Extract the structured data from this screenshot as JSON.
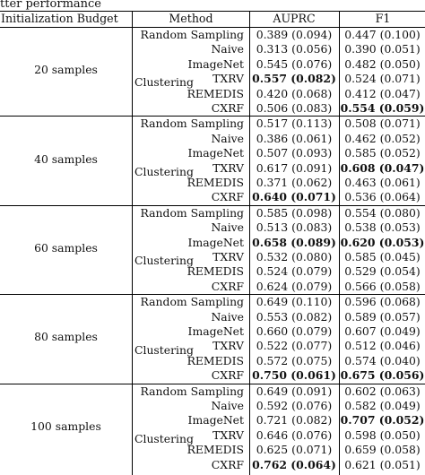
{
  "caption": "tter performance",
  "headers": {
    "budget": "Initialization Budget",
    "method": "Method",
    "auprc": "AUPRC",
    "f1": "F1"
  },
  "groups": [
    {
      "budget": "20 samples",
      "cluster_label": "Clustering",
      "rows": [
        {
          "method": "Random Sampling",
          "auprc": "0.389 (0.094)",
          "f1": "0.447 (0.100)",
          "auprc_bold": false,
          "f1_bold": false
        },
        {
          "method": "Naive",
          "auprc": "0.313 (0.056)",
          "f1": "0.390 (0.051)",
          "auprc_bold": false,
          "f1_bold": false
        },
        {
          "method": "ImageNet",
          "auprc": "0.545 (0.076)",
          "f1": "0.482 (0.050)",
          "auprc_bold": false,
          "f1_bold": false
        },
        {
          "method": "TXRV",
          "auprc": "0.557 (0.082)",
          "f1": "0.524 (0.071)",
          "auprc_bold": true,
          "f1_bold": false
        },
        {
          "method": "REMEDIS",
          "auprc": "0.420 (0.068)",
          "f1": "0.412 (0.047)",
          "auprc_bold": false,
          "f1_bold": false
        },
        {
          "method": "CXRF",
          "auprc": "0.506 (0.083)",
          "f1": "0.554 (0.059)",
          "auprc_bold": false,
          "f1_bold": true
        }
      ]
    },
    {
      "budget": "40 samples",
      "cluster_label": "Clustering",
      "rows": [
        {
          "method": "Random Sampling",
          "auprc": "0.517 (0.113)",
          "f1": "0.508 (0.071)",
          "auprc_bold": false,
          "f1_bold": false
        },
        {
          "method": "Naive",
          "auprc": "0.386 (0.061)",
          "f1": "0.462 (0.052)",
          "auprc_bold": false,
          "f1_bold": false
        },
        {
          "method": "ImageNet",
          "auprc": "0.507 (0.093)",
          "f1": "0.585 (0.052)",
          "auprc_bold": false,
          "f1_bold": false
        },
        {
          "method": "TXRV",
          "auprc": "0.617 (0.091)",
          "f1": "0.608 (0.047)",
          "auprc_bold": false,
          "f1_bold": true
        },
        {
          "method": "REMEDIS",
          "auprc": "0.371 (0.062)",
          "f1": "0.463 (0.061)",
          "auprc_bold": false,
          "f1_bold": false
        },
        {
          "method": "CXRF",
          "auprc": "0.640 (0.071)",
          "f1": "0.536 (0.064)",
          "auprc_bold": true,
          "f1_bold": false
        }
      ]
    },
    {
      "budget": "60 samples",
      "cluster_label": "Clustering",
      "rows": [
        {
          "method": "Random Sampling",
          "auprc": "0.585 (0.098)",
          "f1": "0.554 (0.080)",
          "auprc_bold": false,
          "f1_bold": false
        },
        {
          "method": "Naive",
          "auprc": "0.513 (0.083)",
          "f1": "0.538 (0.053)",
          "auprc_bold": false,
          "f1_bold": false
        },
        {
          "method": "ImageNet",
          "auprc": "0.658 (0.089)",
          "f1": "0.620 (0.053)",
          "auprc_bold": true,
          "f1_bold": true
        },
        {
          "method": "TXRV",
          "auprc": "0.532 (0.080)",
          "f1": "0.585 (0.045)",
          "auprc_bold": false,
          "f1_bold": false
        },
        {
          "method": "REMEDIS",
          "auprc": "0.524 (0.079)",
          "f1": "0.529 (0.054)",
          "auprc_bold": false,
          "f1_bold": false
        },
        {
          "method": "CXRF",
          "auprc": "0.624 (0.079)",
          "f1": "0.566 (0.058)",
          "auprc_bold": false,
          "f1_bold": false
        }
      ]
    },
    {
      "budget": "80 samples",
      "cluster_label": "Clustering",
      "rows": [
        {
          "method": "Random Sampling",
          "auprc": "0.649 (0.110)",
          "f1": "0.596 (0.068)",
          "auprc_bold": false,
          "f1_bold": false
        },
        {
          "method": "Naive",
          "auprc": "0.553 (0.082)",
          "f1": "0.589 (0.057)",
          "auprc_bold": false,
          "f1_bold": false
        },
        {
          "method": "ImageNet",
          "auprc": "0.660 (0.079)",
          "f1": "0.607 (0.049)",
          "auprc_bold": false,
          "f1_bold": false
        },
        {
          "method": "TXRV",
          "auprc": "0.522 (0.077)",
          "f1": "0.512 (0.046)",
          "auprc_bold": false,
          "f1_bold": false
        },
        {
          "method": "REMEDIS",
          "auprc": "0.572 (0.075)",
          "f1": "0.574 (0.040)",
          "auprc_bold": false,
          "f1_bold": false
        },
        {
          "method": "CXRF",
          "auprc": "0.750 (0.061)",
          "f1": "0.675 (0.056)",
          "auprc_bold": true,
          "f1_bold": true
        }
      ]
    },
    {
      "budget": "100 samples",
      "cluster_label": "Clustering",
      "rows": [
        {
          "method": "Random Sampling",
          "auprc": "0.649 (0.091)",
          "f1": "0.602 (0.063)",
          "auprc_bold": false,
          "f1_bold": false
        },
        {
          "method": "Naive",
          "auprc": "0.592 (0.076)",
          "f1": "0.582 (0.049)",
          "auprc_bold": false,
          "f1_bold": false
        },
        {
          "method": "ImageNet",
          "auprc": "0.721 (0.082)",
          "f1": "0.707 (0.052)",
          "auprc_bold": false,
          "f1_bold": true
        },
        {
          "method": "TXRV",
          "auprc": "0.646 (0.076)",
          "f1": "0.598 (0.050)",
          "auprc_bold": false,
          "f1_bold": false
        },
        {
          "method": "REMEDIS",
          "auprc": "0.625 (0.071)",
          "f1": "0.659 (0.058)",
          "auprc_bold": false,
          "f1_bold": false
        },
        {
          "method": "CXRF",
          "auprc": "0.762 (0.064)",
          "f1": "0.621 (0.051)",
          "auprc_bold": true,
          "f1_bold": false
        }
      ]
    }
  ]
}
